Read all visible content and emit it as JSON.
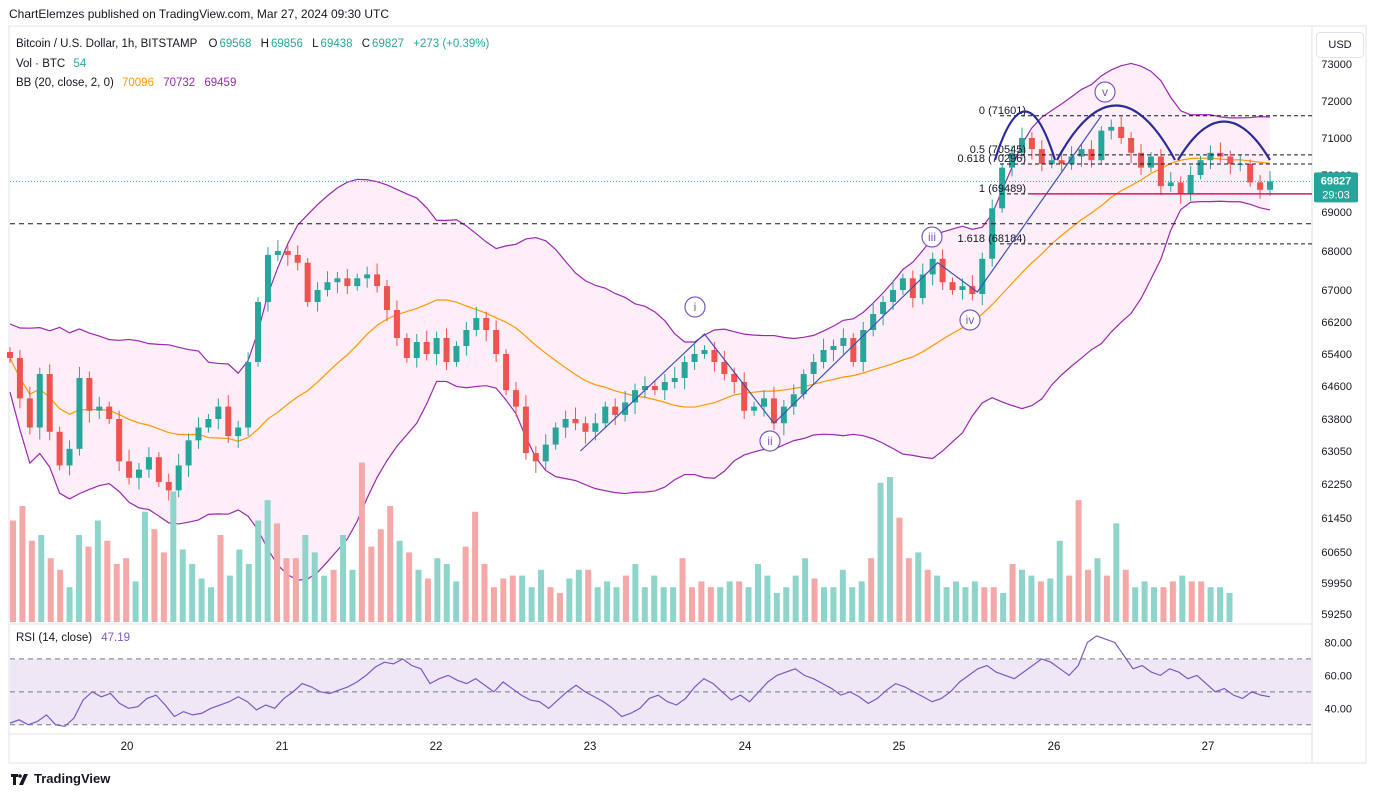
{
  "header": {
    "attribution": "ChartElemzes published on TradingView.com, Mar 27, 2024 09:30 UTC"
  },
  "legend": {
    "symbol": "Bitcoin / U.S. Dollar, 1h, BITSTAMP",
    "o_label": "O",
    "o_value": "69568",
    "h_label": "H",
    "h_value": "69856",
    "l_label": "L",
    "l_value": "69438",
    "c_label": "C",
    "c_value": "69827",
    "change": "+273 (+0.39%)",
    "vol_label": "Vol · BTC",
    "vol_value": "54",
    "bb_label": "BB (20, close, 2, 0)",
    "bb_basis": "70096",
    "bb_upper": "70732",
    "bb_lower": "69459"
  },
  "rsi_legend": {
    "label": "RSI (14, close)",
    "value": "47.19"
  },
  "currency_button": "USD",
  "footer": {
    "brand": "TradingView"
  },
  "colors": {
    "up": "#26a69a",
    "down": "#ef5350",
    "bb_basis": "#ff9800",
    "bb_band": "#9c27b0",
    "bb_fill": "#fdeef8",
    "rsi_line": "#7e57c2",
    "rsi_band": "#ede7f6",
    "wave": "#2a2a9a"
  },
  "chart_data": [
    {
      "type": "candlestick",
      "title": "Bitcoin / U.S. Dollar, 1h, BITSTAMP",
      "yaxis_ticks": [
        "73000",
        "72000",
        "71000",
        "70000",
        "69000",
        "68000",
        "67000",
        "66200",
        "65400",
        "64600",
        "63800",
        "63050",
        "62250",
        "61450",
        "60650",
        "59950",
        "59250"
      ],
      "xaxis_ticks": [
        "20",
        "21",
        "22",
        "23",
        "24",
        "25",
        "26",
        "27"
      ],
      "last_price": "69827",
      "countdown": "29:03",
      "fib_levels": [
        {
          "label": "0 (71601)",
          "value": 71601
        },
        {
          "label": "0.5 (70545)",
          "value": 70545
        },
        {
          "label": "0.618 (70296)",
          "value": 70296
        },
        {
          "label": "1 (69489)",
          "value": 69489
        },
        {
          "label": "1.618 (68184)",
          "value": 68184
        }
      ],
      "wave_labels": [
        "i",
        "ii",
        "iii",
        "iv",
        "v"
      ],
      "price_path": [
        [
          0,
          65300
        ],
        [
          10,
          64300
        ],
        [
          20,
          63600
        ],
        [
          30,
          64900
        ],
        [
          40,
          63500
        ],
        [
          50,
          62700
        ],
        [
          60,
          63100
        ],
        [
          70,
          64800
        ],
        [
          80,
          64000
        ],
        [
          90,
          64100
        ],
        [
          100,
          63800
        ],
        [
          110,
          62800
        ],
        [
          120,
          62400
        ],
        [
          130,
          62600
        ],
        [
          140,
          62900
        ],
        [
          150,
          62300
        ],
        [
          160,
          62100
        ],
        [
          170,
          62700
        ],
        [
          180,
          63300
        ],
        [
          190,
          63600
        ],
        [
          200,
          63800
        ],
        [
          210,
          64100
        ],
        [
          220,
          63400
        ],
        [
          230,
          63600
        ],
        [
          240,
          65200
        ],
        [
          250,
          66700
        ],
        [
          260,
          67900
        ],
        [
          270,
          68000
        ],
        [
          280,
          67900
        ],
        [
          290,
          67700
        ],
        [
          300,
          66700
        ],
        [
          310,
          67000
        ],
        [
          320,
          67200
        ],
        [
          330,
          67300
        ],
        [
          340,
          67100
        ],
        [
          350,
          67300
        ],
        [
          360,
          67400
        ],
        [
          370,
          67100
        ],
        [
          380,
          66500
        ],
        [
          390,
          65800
        ],
        [
          400,
          65300
        ],
        [
          410,
          65700
        ],
        [
          420,
          65400
        ],
        [
          430,
          65800
        ],
        [
          440,
          65200
        ],
        [
          450,
          65600
        ],
        [
          460,
          66000
        ],
        [
          470,
          66300
        ],
        [
          480,
          66000
        ],
        [
          490,
          65400
        ],
        [
          500,
          64500
        ],
        [
          510,
          64100
        ],
        [
          520,
          63000
        ],
        [
          530,
          62800
        ],
        [
          540,
          63200
        ],
        [
          550,
          63600
        ],
        [
          560,
          63800
        ],
        [
          570,
          63700
        ],
        [
          580,
          63500
        ],
        [
          590,
          63700
        ],
        [
          600,
          64100
        ],
        [
          610,
          63900
        ],
        [
          620,
          64200
        ],
        [
          630,
          64500
        ],
        [
          640,
          64600
        ],
        [
          650,
          64500
        ],
        [
          660,
          64700
        ],
        [
          670,
          64800
        ],
        [
          680,
          65200
        ],
        [
          690,
          65400
        ],
        [
          700,
          65500
        ],
        [
          710,
          65200
        ],
        [
          720,
          64900
        ],
        [
          730,
          64700
        ],
        [
          740,
          64000
        ],
        [
          750,
          64100
        ],
        [
          760,
          64300
        ],
        [
          770,
          63700
        ],
        [
          780,
          64100
        ],
        [
          790,
          64400
        ],
        [
          800,
          64900
        ],
        [
          810,
          65200
        ],
        [
          820,
          65500
        ],
        [
          830,
          65600
        ],
        [
          840,
          65800
        ],
        [
          850,
          65200
        ],
        [
          860,
          66000
        ],
        [
          870,
          66400
        ],
        [
          880,
          66700
        ],
        [
          890,
          67000
        ],
        [
          900,
          67300
        ],
        [
          910,
          66800
        ],
        [
          920,
          67400
        ],
        [
          930,
          67800
        ],
        [
          940,
          67200
        ],
        [
          950,
          67000
        ],
        [
          960,
          67100
        ],
        [
          970,
          66900
        ],
        [
          980,
          67800
        ],
        [
          990,
          69100
        ],
        [
          1000,
          70200
        ],
        [
          1010,
          70600
        ],
        [
          1020,
          71000
        ],
        [
          1030,
          70700
        ],
        [
          1040,
          70300
        ],
        [
          1050,
          70400
        ],
        [
          1060,
          70300
        ],
        [
          1070,
          70500
        ],
        [
          1080,
          70700
        ],
        [
          1090,
          70400
        ],
        [
          1100,
          71200
        ],
        [
          1110,
          71300
        ],
        [
          1120,
          71000
        ],
        [
          1130,
          70600
        ],
        [
          1140,
          70200
        ],
        [
          1150,
          70500
        ],
        [
          1160,
          69700
        ],
        [
          1170,
          69800
        ],
        [
          1180,
          69500
        ],
        [
          1190,
          70000
        ],
        [
          1200,
          70400
        ],
        [
          1210,
          70600
        ],
        [
          1220,
          70500
        ],
        [
          1230,
          70300
        ],
        [
          1240,
          70300
        ],
        [
          1250,
          69800
        ],
        [
          1260,
          69600
        ],
        [
          1270,
          69827
        ]
      ]
    },
    {
      "type": "bar",
      "title": "Volume",
      "values": [
        35,
        40,
        28,
        30,
        22,
        18,
        12,
        30,
        26,
        35,
        28,
        20,
        22,
        14,
        38,
        32,
        24,
        45,
        25,
        20,
        15,
        12,
        30,
        16,
        25,
        20,
        35,
        42,
        34,
        22,
        22,
        30,
        24,
        16,
        18,
        30,
        18,
        55,
        26,
        32,
        40,
        28,
        24,
        18,
        15,
        22,
        20,
        14,
        26,
        38,
        20,
        12,
        15,
        16,
        16,
        12,
        18,
        12,
        10,
        15,
        18,
        18,
        12,
        14,
        12,
        16,
        20,
        12,
        16,
        12,
        12,
        22,
        12,
        14,
        12,
        12,
        14,
        14,
        12,
        20,
        16,
        10,
        12,
        16,
        22,
        15,
        12,
        12,
        18,
        12,
        14,
        22,
        48,
        50,
        36,
        22,
        24,
        18,
        16,
        12,
        14,
        12,
        14,
        12,
        12,
        10,
        20,
        18,
        16,
        14,
        15,
        28,
        16,
        42,
        18,
        22,
        16,
        34,
        18,
        12,
        14,
        12,
        12,
        14,
        16,
        14,
        14,
        12,
        12,
        10
      ]
    },
    {
      "type": "line",
      "title": "RSI (14, close)",
      "ylabel": "",
      "yaxis_ticks": [
        "80.00",
        "60.00",
        "40.00"
      ],
      "ylim": [
        25,
        90
      ],
      "bands": [
        30,
        70
      ],
      "series": [
        {
          "name": "RSI (14, close)",
          "values": [
            31,
            33,
            30,
            32,
            36,
            30,
            29,
            34,
            45,
            50,
            47,
            49,
            43,
            40,
            41,
            46,
            48,
            42,
            35,
            38,
            36,
            37,
            40,
            42,
            44,
            47,
            44,
            39,
            42,
            40,
            46,
            50,
            55,
            53,
            50,
            49,
            51,
            53,
            56,
            60,
            65,
            68,
            67,
            70,
            66,
            64,
            55,
            58,
            60,
            57,
            55,
            58,
            54,
            50,
            56,
            52,
            48,
            45,
            44,
            40,
            45,
            50,
            54,
            50,
            47,
            44,
            40,
            35,
            37,
            40,
            46,
            48,
            44,
            42,
            46,
            53,
            58,
            55,
            50,
            45,
            48,
            44,
            50,
            56,
            60,
            62,
            64,
            60,
            58,
            55,
            52,
            48,
            50,
            47,
            43,
            46,
            51,
            55,
            53,
            50,
            47,
            44,
            46,
            50,
            56,
            60,
            64,
            66,
            62,
            60,
            58,
            62,
            66,
            70,
            68,
            64,
            60,
            66,
            80,
            84,
            82,
            80,
            72,
            64,
            66,
            62,
            60,
            64,
            62,
            58,
            60,
            55,
            50,
            52,
            48,
            46,
            50,
            48,
            47
          ]
        }
      ]
    }
  ]
}
